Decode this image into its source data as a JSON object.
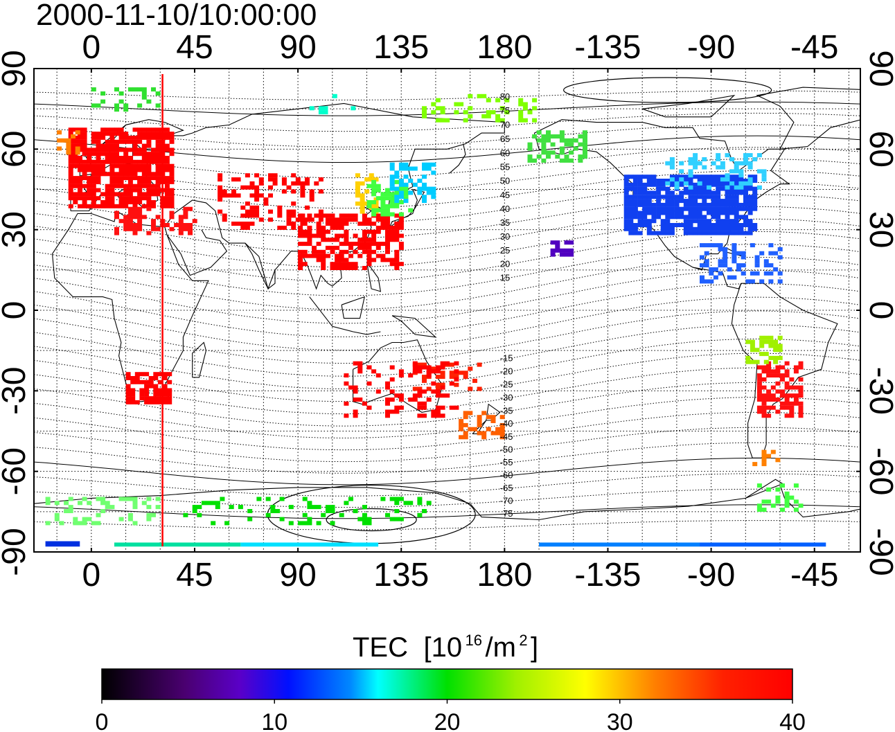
{
  "title": "2000-11-10/10:00:00",
  "map": {
    "lon_ticks": [
      "0",
      "45",
      "90",
      "135",
      "180",
      "-135",
      "-90",
      "-45"
    ],
    "lat_ticks": [
      "90",
      "60",
      "30",
      "0",
      "-30",
      "-60",
      "-90"
    ],
    "lon_range": [
      -25,
      335
    ],
    "lat_range": [
      -90,
      90
    ],
    "grid": true,
    "terminator_longitude": 31,
    "magnetic_lat_labels": [
      "80",
      "75",
      "70",
      "65",
      "60",
      "55",
      "50",
      "45",
      "40",
      "35",
      "30",
      "25",
      "20",
      "15",
      "-15",
      "-20",
      "-25",
      "-30",
      "-35",
      "-40",
      "-45",
      "-50",
      "-55",
      "-60",
      "-65",
      "-70",
      "-75"
    ]
  },
  "colorbar": {
    "label": "TEC",
    "unit_base": "[10",
    "unit_exp": "16",
    "unit_mid": "/m",
    "unit_exp2": "2",
    "unit_end": "]",
    "min": 0,
    "max": 40,
    "ticks": [
      "0",
      "10",
      "20",
      "30",
      "40"
    ]
  },
  "colors": {
    "background": "#ffffff",
    "terminator": "#ff0000"
  }
}
